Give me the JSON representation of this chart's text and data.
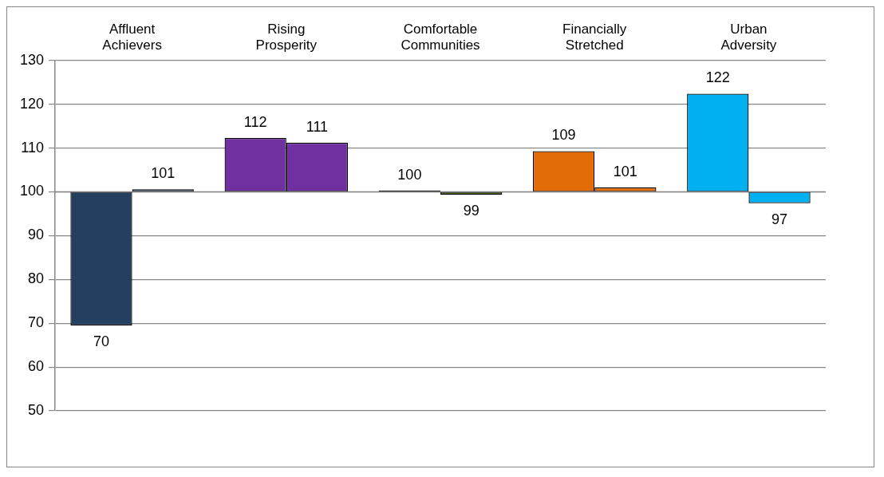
{
  "chart_data": {
    "type": "bar",
    "categories": [
      "Affluent Achievers",
      "Rising Prosperity",
      "Comfortable Communities",
      "Financially Stretched",
      "Urban Adversity"
    ],
    "series": [
      {
        "colors": [
          "#243f60",
          "#7030a0",
          "#000000",
          "#e36c09",
          "#00b0f0"
        ],
        "base": [
          100,
          100,
          100,
          100,
          100
        ],
        "values": [
          -30.5,
          12.3,
          0.3,
          9.3,
          22.4
        ],
        "value_labels": [
          "70",
          "112",
          "100",
          "109",
          "122"
        ]
      },
      {
        "colors": [
          "#243f60",
          "#7030a0",
          "#4f6228",
          "#e36c09",
          "#00b0f0"
        ],
        "base": [
          100,
          100,
          100,
          100,
          100
        ],
        "values": [
          0.6,
          11.2,
          -0.7,
          1.0,
          -2.6
        ],
        "value_labels": [
          "101",
          "111",
          "99",
          "101",
          "97"
        ]
      }
    ],
    "ylim": [
      50,
      130
    ],
    "yticks": [
      50,
      60,
      70,
      80,
      90,
      100,
      110,
      120,
      130
    ],
    "grid": "y",
    "ref_lines": [
      {
        "axis": "y",
        "value": 100,
        "color": "#888888"
      }
    ]
  }
}
